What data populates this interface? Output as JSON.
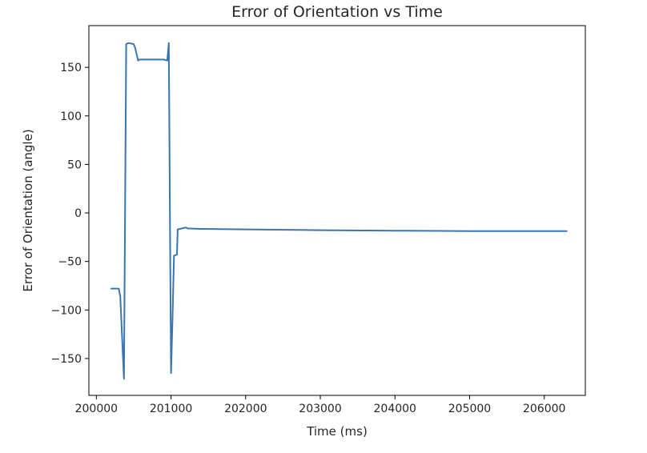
{
  "chart_data": {
    "type": "line",
    "title": "Error of Orientation vs Time",
    "xlabel": "Time (ms)",
    "ylabel": "Error of Orientation (angle)",
    "xlim": [
      199900,
      206550
    ],
    "ylim": [
      -188,
      193
    ],
    "xticks": [
      200000,
      201000,
      202000,
      203000,
      204000,
      205000,
      206000
    ],
    "xtick_labels": [
      "200000",
      "201000",
      "202000",
      "203000",
      "204000",
      "205000",
      "206000"
    ],
    "yticks": [
      -150,
      -100,
      -50,
      0,
      50,
      100,
      150
    ],
    "ytick_labels": [
      "−150",
      "−100",
      "−50",
      "0",
      "50",
      "100",
      "150"
    ],
    "grid": false,
    "colors": {
      "line": "#3b75af",
      "axis": "#000000",
      "text": "#262626"
    },
    "series": [
      {
        "x": [
          200200,
          200300,
          200320,
          200370,
          200400,
          200430,
          200500,
          200520,
          200560,
          200580,
          200650,
          200900,
          200950,
          200970,
          200985,
          201000,
          201020,
          201040,
          201080,
          201090,
          201150,
          201200,
          201220,
          201400,
          202000,
          203000,
          204000,
          205000,
          206000,
          206300
        ],
        "y": [
          -78,
          -78,
          -86,
          -171,
          174,
          175,
          174,
          170,
          157,
          158,
          158,
          158,
          157,
          175,
          0,
          -165,
          -110,
          -44,
          -43,
          -17,
          -16,
          -15,
          -16,
          -16.5,
          -17,
          -17.8,
          -18.3,
          -18.7,
          -18.8,
          -18.8
        ]
      }
    ]
  }
}
